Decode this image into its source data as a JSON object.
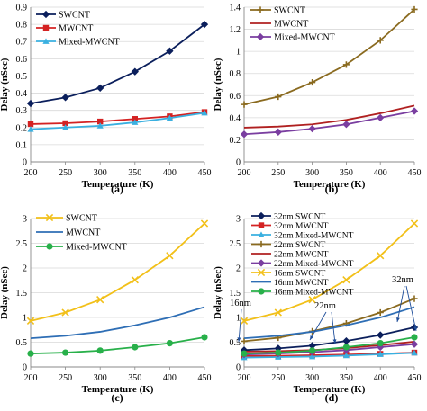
{
  "chart_data": [
    {
      "type": "line",
      "caption": "(a)",
      "xlabel": "Temperature (K)",
      "ylabel": "Delay (nSec)",
      "x": [
        200,
        250,
        300,
        350,
        400,
        450
      ],
      "xlim": [
        200,
        450
      ],
      "xticks": [
        "200",
        "250",
        "300",
        "350",
        "400",
        "450"
      ],
      "ylim": [
        0,
        0.9
      ],
      "yticks": [
        "0",
        "0.1",
        "0.2",
        "0.3",
        "0.4",
        "0.5",
        "0.6",
        "0.7",
        "0.8",
        "0.9"
      ],
      "legend_position": "top-left",
      "series": [
        {
          "name": "SWCNT",
          "color": "#0b1f5c",
          "marker": "diamond",
          "values": [
            0.34,
            0.375,
            0.43,
            0.525,
            0.645,
            0.8
          ]
        },
        {
          "name": "MWCNT",
          "color": "#d42222",
          "marker": "square",
          "values": [
            0.22,
            0.225,
            0.235,
            0.25,
            0.265,
            0.29
          ]
        },
        {
          "name": "Mixed-MWCNT",
          "color": "#3ab0e0",
          "marker": "triangle",
          "values": [
            0.19,
            0.2,
            0.21,
            0.23,
            0.255,
            0.285
          ]
        }
      ]
    },
    {
      "type": "line",
      "caption": "(b)",
      "xlabel": "Temperature (K)",
      "ylabel": "Delay (nSec)",
      "x": [
        200,
        250,
        300,
        350,
        400,
        450
      ],
      "xlim": [
        200,
        450
      ],
      "xticks": [
        "200",
        "250",
        "300",
        "350",
        "400",
        "450"
      ],
      "ylim": [
        0,
        1.4
      ],
      "yticks": [
        "0",
        "0.2",
        "0.4",
        "0.6",
        "0.8",
        "1",
        "1.2",
        "1.4"
      ],
      "legend_position": "top-left",
      "series": [
        {
          "name": "SWCNT",
          "color": "#8a6a1f",
          "marker": "plus",
          "values": [
            0.52,
            0.59,
            0.72,
            0.88,
            1.1,
            1.38
          ]
        },
        {
          "name": "MWCNT",
          "color": "#b02020",
          "marker": "none",
          "values": [
            0.31,
            0.32,
            0.34,
            0.38,
            0.44,
            0.51
          ]
        },
        {
          "name": "Mixed-MWCNT",
          "color": "#7a3ea0",
          "marker": "diamond",
          "values": [
            0.25,
            0.27,
            0.3,
            0.34,
            0.4,
            0.46
          ]
        }
      ]
    },
    {
      "type": "line",
      "caption": "(c)",
      "xlabel": "Temperature (K)",
      "ylabel": "Delay (nSec)",
      "x": [
        200,
        250,
        300,
        350,
        400,
        450
      ],
      "xlim": [
        200,
        450
      ],
      "xticks": [
        "200",
        "250",
        "300",
        "350",
        "400",
        "450"
      ],
      "ylim": [
        0,
        3
      ],
      "yticks": [
        "0",
        "0.5",
        "1",
        "1.5",
        "2",
        "2.5",
        "3"
      ],
      "legend_position": "top-left",
      "series": [
        {
          "name": "SWCNT",
          "color": "#f2c019",
          "marker": "x",
          "values": [
            0.93,
            1.1,
            1.36,
            1.76,
            2.25,
            2.9
          ]
        },
        {
          "name": "MWCNT",
          "color": "#2e6eb5",
          "marker": "none",
          "values": [
            0.58,
            0.63,
            0.71,
            0.84,
            1.0,
            1.21
          ]
        },
        {
          "name": "Mixed-MWCNT",
          "color": "#28b04a",
          "marker": "circle",
          "values": [
            0.27,
            0.29,
            0.33,
            0.4,
            0.48,
            0.6
          ]
        }
      ]
    },
    {
      "type": "line",
      "caption": "(d)",
      "xlabel": "Temperature (K)",
      "ylabel": "Delay (nSec)",
      "x": [
        200,
        250,
        300,
        350,
        400,
        450
      ],
      "xlim": [
        200,
        450
      ],
      "xticks": [
        "200",
        "250",
        "300",
        "350",
        "400",
        "450"
      ],
      "ylim": [
        0,
        3
      ],
      "yticks": [
        "0",
        "0.5",
        "1",
        "1.5",
        "2",
        "2.5",
        "3"
      ],
      "legend_position": "top-left",
      "annotations": [
        "16nm",
        "22nm",
        "32nm"
      ],
      "series": [
        {
          "name": "32nm SWCNT",
          "color": "#0b1f5c",
          "marker": "diamond",
          "values": [
            0.34,
            0.375,
            0.43,
            0.525,
            0.645,
            0.8
          ]
        },
        {
          "name": "32nm MWCNT",
          "color": "#d42222",
          "marker": "square",
          "values": [
            0.22,
            0.225,
            0.235,
            0.25,
            0.265,
            0.29
          ]
        },
        {
          "name": "32nm Mixed-MWCNT",
          "color": "#3ab0e0",
          "marker": "triangle",
          "values": [
            0.19,
            0.2,
            0.21,
            0.23,
            0.255,
            0.285
          ]
        },
        {
          "name": "22nm SWCNT",
          "color": "#8a6a1f",
          "marker": "plus",
          "values": [
            0.52,
            0.59,
            0.72,
            0.88,
            1.1,
            1.38
          ]
        },
        {
          "name": "22nm MWCNT",
          "color": "#b02020",
          "marker": "none",
          "values": [
            0.31,
            0.32,
            0.34,
            0.38,
            0.44,
            0.51
          ]
        },
        {
          "name": "22nm Mixed-MWCNT",
          "color": "#7a3ea0",
          "marker": "diamond",
          "values": [
            0.25,
            0.27,
            0.3,
            0.34,
            0.4,
            0.46
          ]
        },
        {
          "name": "16nm SWCNT",
          "color": "#f2c019",
          "marker": "x",
          "values": [
            0.93,
            1.1,
            1.36,
            1.76,
            2.25,
            2.9
          ]
        },
        {
          "name": "16nm MWCNT",
          "color": "#2e6eb5",
          "marker": "none",
          "values": [
            0.58,
            0.63,
            0.71,
            0.84,
            1.0,
            1.21
          ]
        },
        {
          "name": "16nm Mixed-MWCNT",
          "color": "#28b04a",
          "marker": "circle",
          "values": [
            0.27,
            0.29,
            0.33,
            0.4,
            0.48,
            0.6
          ]
        }
      ]
    }
  ]
}
